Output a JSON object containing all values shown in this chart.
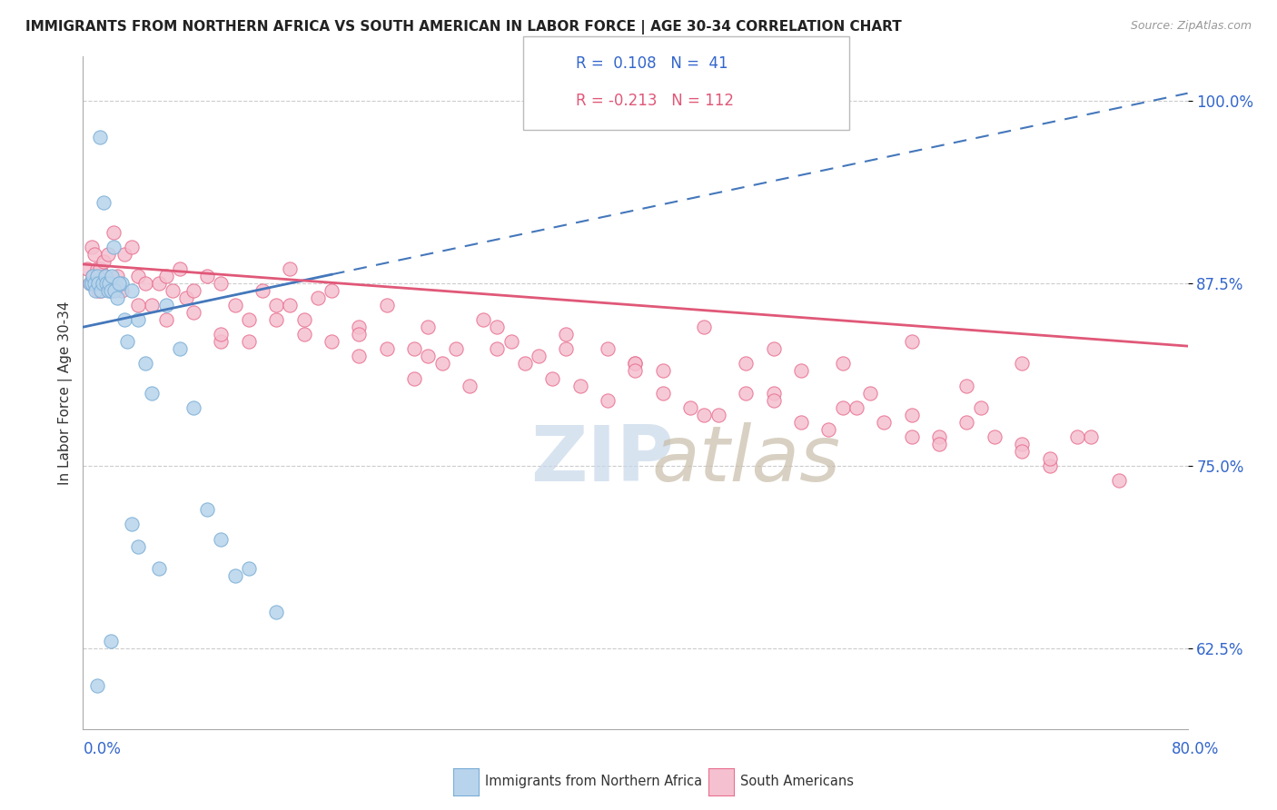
{
  "title": "IMMIGRANTS FROM NORTHERN AFRICA VS SOUTH AMERICAN IN LABOR FORCE | AGE 30-34 CORRELATION CHART",
  "source": "Source: ZipAtlas.com",
  "ylabel": "In Labor Force | Age 30-34",
  "y_ticks": [
    62.5,
    75.0,
    87.5,
    100.0
  ],
  "xmin": 0.0,
  "xmax": 80.0,
  "ymin": 57.0,
  "ymax": 103.0,
  "blue_fill": "#b8d4ec",
  "blue_edge": "#7aaed6",
  "pink_fill": "#f5c0d0",
  "pink_edge": "#e87090",
  "trend_blue_color": "#4477bb",
  "trend_pink_color": "#e05878",
  "grid_color": "#cccccc",
  "watermark_zip_color": "#c8d8ea",
  "watermark_atlas_color": "#c8bca8",
  "blue_x": [
    1.2,
    1.5,
    2.2,
    2.8,
    3.5,
    0.5,
    0.6,
    0.7,
    0.8,
    0.9,
    1.0,
    1.1,
    1.3,
    1.4,
    1.6,
    1.7,
    1.8,
    1.9,
    2.0,
    2.1,
    2.3,
    2.5,
    2.6,
    3.0,
    3.2,
    4.0,
    4.5,
    5.0,
    6.0,
    7.0,
    8.0,
    9.0,
    10.0,
    11.0,
    12.0,
    14.0,
    1.0,
    2.0,
    3.5,
    4.0,
    5.5
  ],
  "blue_y": [
    97.5,
    93.0,
    90.0,
    87.5,
    87.0,
    87.5,
    87.5,
    88.0,
    87.5,
    87.0,
    88.0,
    87.5,
    87.0,
    87.5,
    88.0,
    87.5,
    87.0,
    87.5,
    87.0,
    88.0,
    87.0,
    86.5,
    87.5,
    85.0,
    83.5,
    85.0,
    82.0,
    80.0,
    86.0,
    83.0,
    79.0,
    72.0,
    70.0,
    67.5,
    68.0,
    65.0,
    60.0,
    63.0,
    71.0,
    69.5,
    68.0
  ],
  "pink_x": [
    0.3,
    0.5,
    0.6,
    0.7,
    0.8,
    0.9,
    1.0,
    1.1,
    1.2,
    1.3,
    1.5,
    1.6,
    1.8,
    2.0,
    2.2,
    2.5,
    2.8,
    3.0,
    3.5,
    4.0,
    4.5,
    5.0,
    5.5,
    6.0,
    6.5,
    7.0,
    7.5,
    8.0,
    9.0,
    10.0,
    11.0,
    12.0,
    13.0,
    14.0,
    15.0,
    16.0,
    17.0,
    18.0,
    20.0,
    22.0,
    24.0,
    25.0,
    27.0,
    29.0,
    31.0,
    33.0,
    35.0,
    38.0,
    40.0,
    42.0,
    45.0,
    48.0,
    50.0,
    52.0,
    55.0,
    57.0,
    60.0,
    62.0,
    65.0,
    68.0,
    70.0,
    73.0,
    75.0,
    10.0,
    15.0,
    20.0,
    25.0,
    30.0,
    35.0,
    40.0,
    45.0,
    50.0,
    55.0,
    60.0,
    64.0,
    68.0,
    4.0,
    6.0,
    8.0,
    10.0,
    12.0,
    14.0,
    16.0,
    18.0,
    20.0,
    22.0,
    24.0,
    26.0,
    28.0,
    30.0,
    32.0,
    34.0,
    36.0,
    38.0,
    40.0,
    42.0,
    44.0,
    46.0,
    48.0,
    50.0,
    52.0,
    54.0,
    56.0,
    58.0,
    60.0,
    62.0,
    64.0,
    66.0,
    68.0,
    70.0,
    72.0
  ],
  "pink_y": [
    88.5,
    87.5,
    90.0,
    88.0,
    89.5,
    87.5,
    88.5,
    87.0,
    88.5,
    87.0,
    89.0,
    88.0,
    89.5,
    87.0,
    91.0,
    88.0,
    87.0,
    89.5,
    90.0,
    88.0,
    87.5,
    86.0,
    87.5,
    88.0,
    87.0,
    88.5,
    86.5,
    85.5,
    88.0,
    87.5,
    86.0,
    85.0,
    87.0,
    86.0,
    88.5,
    85.0,
    86.5,
    87.0,
    84.5,
    86.0,
    83.0,
    84.5,
    83.0,
    85.0,
    83.5,
    82.5,
    84.0,
    83.0,
    82.0,
    81.5,
    78.5,
    82.0,
    80.0,
    81.5,
    79.0,
    80.0,
    78.5,
    77.0,
    79.0,
    76.5,
    75.0,
    77.0,
    74.0,
    83.5,
    86.0,
    84.0,
    82.5,
    84.5,
    83.0,
    82.0,
    84.5,
    83.0,
    82.0,
    83.5,
    80.5,
    82.0,
    86.0,
    85.0,
    87.0,
    84.0,
    83.5,
    85.0,
    84.0,
    83.5,
    82.5,
    83.0,
    81.0,
    82.0,
    80.5,
    83.0,
    82.0,
    81.0,
    80.5,
    79.5,
    81.5,
    80.0,
    79.0,
    78.5,
    80.0,
    79.5,
    78.0,
    77.5,
    79.0,
    78.0,
    77.0,
    76.5,
    78.0,
    77.0,
    76.0,
    75.5,
    77.0
  ],
  "blue_trend_x0": 0.0,
  "blue_trend_y0": 84.5,
  "blue_trend_x1": 80.0,
  "blue_trend_y1": 100.5,
  "pink_trend_x0": 0.0,
  "pink_trend_y0": 88.8,
  "pink_trend_x1": 80.0,
  "pink_trend_y1": 83.2
}
